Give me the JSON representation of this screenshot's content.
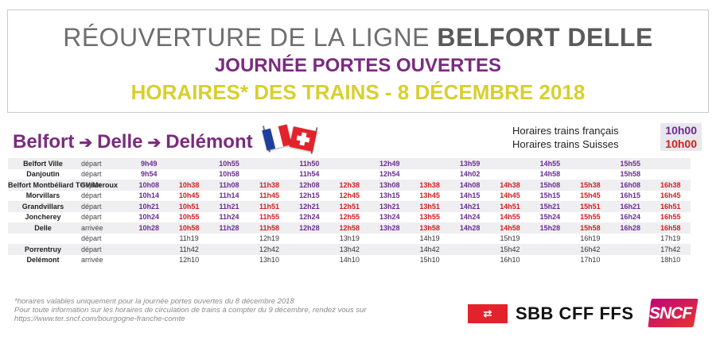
{
  "header": {
    "title_prefix": "RÉOUVERTURE DE LA LIGNE",
    "title_highlight": "BELFORT DELLE",
    "subtitle": "JOURNÉE PORTES OUVERTES",
    "schedule_title": "HORAIRES* DES TRAINS - 8 DÉCEMBRE 2018"
  },
  "route": {
    "stop1": "Belfort",
    "stop2": "Delle",
    "stop3": "Delémont",
    "arrow_icon": "arrow-right-icon"
  },
  "flags": [
    "france-flag-icon",
    "switzerland-flag-icon"
  ],
  "legend": {
    "french_label": "Horaires trains français",
    "french_sample": "10h00",
    "swiss_label": "Horaires trains Suisses",
    "swiss_sample": "10h00"
  },
  "colors": {
    "french": "#6b2c91",
    "swiss": "#d21f1f",
    "brand_purple": "#7a2b7f",
    "brand_yellow": "#d8cf2e"
  },
  "timetable": {
    "rows": [
      {
        "station": "Belfort Ville",
        "type": "départ",
        "times": [
          "9h49",
          "",
          "10h55",
          "",
          "11h50",
          "",
          "12h49",
          "",
          "13h59",
          "",
          "14h55",
          "",
          "15h55",
          ""
        ]
      },
      {
        "station": "Danjoutin",
        "type": "départ",
        "times": [
          "9h54",
          "",
          "10h58",
          "",
          "11h54",
          "",
          "12h54",
          "",
          "14h02",
          "",
          "14h58",
          "",
          "15h58",
          ""
        ]
      },
      {
        "station": "Belfort Montbéliard TGV/Meroux",
        "type": "départ",
        "times": [
          "10h08",
          "10h38",
          "11h08",
          "11h38",
          "12h08",
          "12h38",
          "13h08",
          "13h38",
          "14h08",
          "14h38",
          "15h08",
          "15h38",
          "16h08",
          "16h38"
        ]
      },
      {
        "station": "Morvillars",
        "type": "départ",
        "times": [
          "10h14",
          "10h45",
          "11h14",
          "11h45",
          "12h15",
          "12h45",
          "13h15",
          "13h45",
          "14h15",
          "14h45",
          "15h15",
          "15h45",
          "16h15",
          "16h45"
        ]
      },
      {
        "station": "Grandvillars",
        "type": "départ",
        "times": [
          "10h21",
          "10h51",
          "11h21",
          "11h51",
          "12h21",
          "12h51",
          "13h21",
          "13h51",
          "14h21",
          "14h51",
          "15h21",
          "15h51",
          "16h21",
          "16h51"
        ]
      },
      {
        "station": "Joncherey",
        "type": "départ",
        "times": [
          "10h24",
          "10h55",
          "11h24",
          "11h55",
          "12h24",
          "12h55",
          "13h24",
          "13h55",
          "14h24",
          "14h55",
          "15h24",
          "15h55",
          "16h24",
          "16h55"
        ]
      },
      {
        "station": "Delle",
        "type": "arrivée",
        "times": [
          "10h28",
          "10h58",
          "11h28",
          "11h58",
          "12h28",
          "12h58",
          "13h28",
          "13h58",
          "14h28",
          "14h58",
          "15h28",
          "15h58",
          "16h28",
          "16h58"
        ]
      },
      {
        "station": "",
        "type": "départ",
        "times": [
          "",
          "11h19",
          "",
          "12h19",
          "",
          "13h19",
          "",
          "14h19",
          "",
          "15h19",
          "",
          "16h19",
          "",
          "17h19"
        ]
      },
      {
        "station": "Porrentruy",
        "type": "départ",
        "times": [
          "",
          "11h42",
          "",
          "12h42",
          "",
          "13h42",
          "",
          "14h42",
          "",
          "15h42",
          "",
          "16h42",
          "",
          "17h42"
        ]
      },
      {
        "station": "Delémont",
        "type": "arrivée",
        "times": [
          "",
          "12h10",
          "",
          "13h10",
          "",
          "14h10",
          "",
          "15h10",
          "",
          "16h10",
          "",
          "17h10",
          "",
          "18h10"
        ]
      }
    ]
  },
  "footnote": {
    "line1": "*horaires valables uniquement pour la journée portes ouvertes du 8 décembre 2018",
    "line2": "Pour toute information sur les horaires de circulation de trains à compter du 9 décembre, rendez vous sur",
    "line3": "https://www.ter.sncf.com/bourgogne-franche-comte"
  },
  "logos": {
    "sbb_text": "SBB CFF FFS",
    "sbb_icon": "sbb-arrows-icon",
    "sncf_text": "SNCF"
  }
}
